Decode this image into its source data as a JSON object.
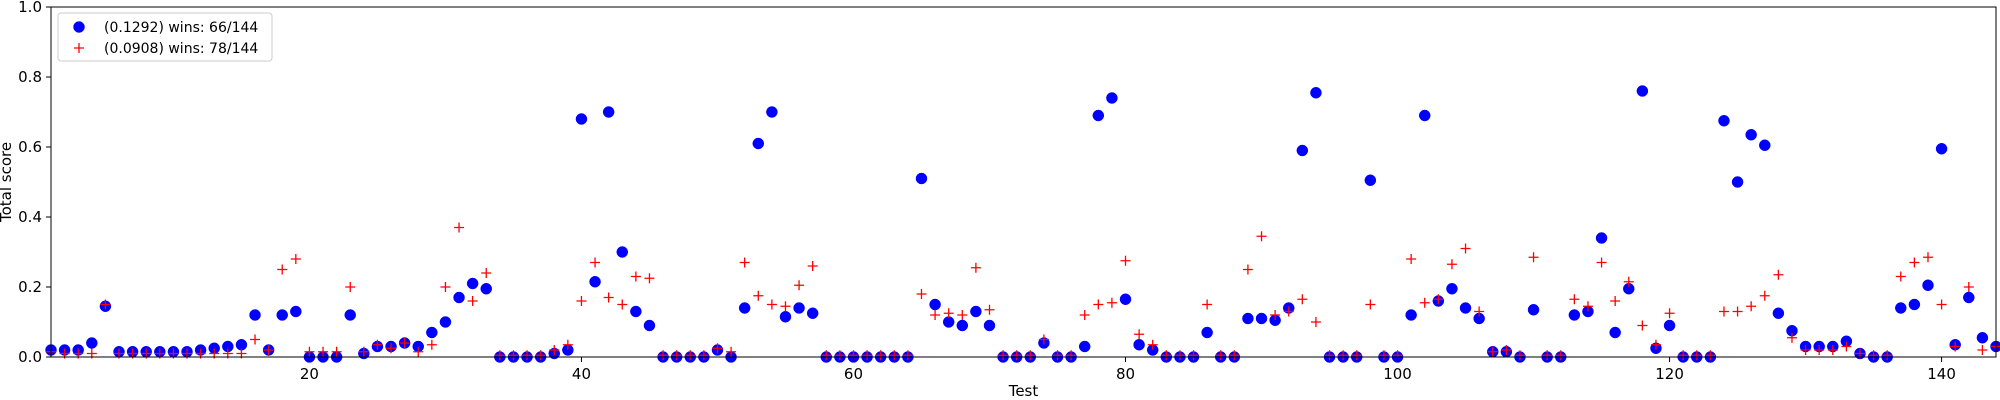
{
  "chart_data": {
    "type": "scatter",
    "title": "",
    "xlabel": "Test",
    "ylabel": "Total score",
    "xlim": [
      1,
      144
    ],
    "ylim": [
      0,
      1.0
    ],
    "xticks": [
      20,
      40,
      60,
      80,
      100,
      120,
      140
    ],
    "yticks": [
      0.0,
      0.2,
      0.4,
      0.6,
      0.8,
      1.0
    ],
    "ytick_labels": [
      "0.0",
      "0.2",
      "0.4",
      "0.6",
      "0.8",
      "1.0"
    ],
    "grid": false,
    "legend_position": "top-left",
    "series": [
      {
        "name": "(0.1292) wins: 66/144",
        "marker": "circle",
        "color": "#0000ff",
        "x": [
          1,
          2,
          3,
          4,
          5,
          6,
          7,
          8,
          9,
          10,
          11,
          12,
          13,
          14,
          15,
          16,
          17,
          18,
          19,
          20,
          21,
          22,
          23,
          24,
          25,
          26,
          27,
          28,
          29,
          30,
          31,
          32,
          33,
          34,
          35,
          36,
          37,
          38,
          39,
          40,
          41,
          42,
          43,
          44,
          45,
          46,
          47,
          48,
          49,
          50,
          51,
          52,
          53,
          54,
          55,
          56,
          57,
          58,
          59,
          60,
          61,
          62,
          63,
          64,
          65,
          66,
          67,
          68,
          69,
          70,
          71,
          72,
          73,
          74,
          75,
          76,
          77,
          78,
          79,
          80,
          81,
          82,
          83,
          84,
          85,
          86,
          87,
          88,
          89,
          90,
          91,
          92,
          93,
          94,
          95,
          96,
          97,
          98,
          99,
          100,
          101,
          102,
          103,
          104,
          105,
          106,
          107,
          108,
          109,
          110,
          111,
          112,
          113,
          114,
          115,
          116,
          117,
          118,
          119,
          120,
          121,
          122,
          123,
          124,
          125,
          126,
          127,
          128,
          129,
          130,
          131,
          132,
          133,
          134,
          135,
          136,
          137,
          138,
          139,
          140,
          141,
          142,
          143,
          144
        ],
        "y": [
          0.02,
          0.02,
          0.02,
          0.04,
          0.145,
          0.015,
          0.015,
          0.015,
          0.015,
          0.015,
          0.015,
          0.02,
          0.025,
          0.03,
          0.035,
          0.12,
          0.02,
          0.12,
          0.13,
          0.0,
          0.0,
          0.0,
          0.12,
          0.01,
          0.03,
          0.03,
          0.04,
          0.03,
          0.07,
          0.1,
          0.17,
          0.21,
          0.195,
          0.0,
          0.0,
          0.0,
          0.0,
          0.01,
          0.02,
          0.68,
          0.215,
          0.7,
          0.3,
          0.13,
          0.09,
          0.0,
          0.0,
          0.0,
          0.0,
          0.02,
          0.0,
          0.14,
          0.61,
          0.7,
          0.115,
          0.14,
          0.125,
          0.0,
          0.0,
          0.0,
          0.0,
          0.0,
          0.0,
          0.0,
          0.51,
          0.15,
          0.1,
          0.09,
          0.13,
          0.09,
          0.0,
          0.0,
          0.0,
          0.04,
          0.0,
          0.0,
          0.03,
          0.69,
          0.74,
          0.165,
          0.035,
          0.02,
          0.0,
          0.0,
          0.0,
          0.07,
          0.0,
          0.0,
          0.11,
          0.11,
          0.105,
          0.14,
          0.59,
          0.755,
          0.0,
          0.0,
          0.0,
          0.505,
          0.0,
          0.0,
          0.12,
          0.69,
          0.16,
          0.195,
          0.14,
          0.11,
          0.015,
          0.015,
          0.0,
          0.135,
          0.0,
          0.0,
          0.12,
          0.13,
          0.34,
          0.07,
          0.195,
          0.76,
          0.025,
          0.09,
          0.0,
          0.0,
          0.0,
          0.675,
          0.5,
          0.635,
          0.605,
          0.125,
          0.075,
          0.03,
          0.03,
          0.03,
          0.045,
          0.01,
          0.0,
          0.0,
          0.14,
          0.15,
          0.205,
          0.595,
          0.035,
          0.17,
          0.055,
          0.03
        ]
      },
      {
        "name": "(0.0908) wins: 78/144",
        "marker": "plus",
        "color": "#ff0000",
        "x": [
          1,
          2,
          3,
          4,
          5,
          6,
          7,
          8,
          9,
          10,
          11,
          12,
          13,
          14,
          15,
          16,
          17,
          18,
          19,
          20,
          21,
          22,
          23,
          24,
          25,
          26,
          27,
          28,
          29,
          30,
          31,
          32,
          33,
          34,
          35,
          36,
          37,
          38,
          39,
          40,
          41,
          42,
          43,
          44,
          45,
          46,
          47,
          48,
          49,
          50,
          51,
          52,
          53,
          54,
          55,
          56,
          57,
          58,
          59,
          60,
          61,
          62,
          63,
          64,
          65,
          66,
          67,
          68,
          69,
          70,
          71,
          72,
          73,
          74,
          75,
          76,
          77,
          78,
          79,
          80,
          81,
          82,
          83,
          84,
          85,
          86,
          87,
          88,
          89,
          90,
          91,
          92,
          93,
          94,
          95,
          96,
          97,
          98,
          99,
          100,
          101,
          102,
          103,
          104,
          105,
          106,
          107,
          108,
          109,
          110,
          111,
          112,
          113,
          114,
          115,
          116,
          117,
          118,
          119,
          120,
          121,
          122,
          123,
          124,
          125,
          126,
          127,
          128,
          129,
          130,
          131,
          132,
          133,
          134,
          135,
          136,
          137,
          138,
          139,
          140,
          141,
          142,
          143,
          144
        ],
        "y": [
          0.015,
          0.01,
          0.01,
          0.01,
          0.15,
          0.01,
          0.01,
          0.01,
          0.01,
          0.01,
          0.01,
          0.01,
          0.01,
          0.01,
          0.01,
          0.05,
          0.02,
          0.25,
          0.28,
          0.015,
          0.015,
          0.015,
          0.2,
          0.015,
          0.035,
          0.025,
          0.04,
          0.015,
          0.035,
          0.2,
          0.37,
          0.16,
          0.24,
          0.005,
          0.005,
          0.005,
          0.005,
          0.02,
          0.035,
          0.16,
          0.27,
          0.17,
          0.15,
          0.23,
          0.225,
          0.005,
          0.005,
          0.005,
          0.005,
          0.025,
          0.015,
          0.27,
          0.175,
          0.15,
          0.145,
          0.205,
          0.26,
          0.005,
          0.005,
          0.005,
          0.005,
          0.005,
          0.005,
          0.005,
          0.18,
          0.12,
          0.125,
          0.12,
          0.255,
          0.135,
          0.005,
          0.005,
          0.005,
          0.05,
          0.005,
          0.005,
          0.12,
          0.15,
          0.155,
          0.275,
          0.065,
          0.035,
          0.005,
          0.005,
          0.005,
          0.15,
          0.005,
          0.005,
          0.25,
          0.345,
          0.12,
          0.13,
          0.165,
          0.1,
          0.005,
          0.005,
          0.005,
          0.15,
          0.005,
          0.005,
          0.28,
          0.155,
          0.165,
          0.265,
          0.31,
          0.13,
          0.015,
          0.02,
          0.005,
          0.285,
          0.005,
          0.005,
          0.165,
          0.145,
          0.27,
          0.16,
          0.215,
          0.09,
          0.035,
          0.125,
          0.005,
          0.005,
          0.005,
          0.13,
          0.13,
          0.145,
          0.175,
          0.235,
          0.055,
          0.02,
          0.02,
          0.02,
          0.03,
          0.01,
          0.005,
          0.005,
          0.23,
          0.27,
          0.285,
          0.15,
          0.03,
          0.2,
          0.02,
          0.03
        ]
      }
    ]
  }
}
